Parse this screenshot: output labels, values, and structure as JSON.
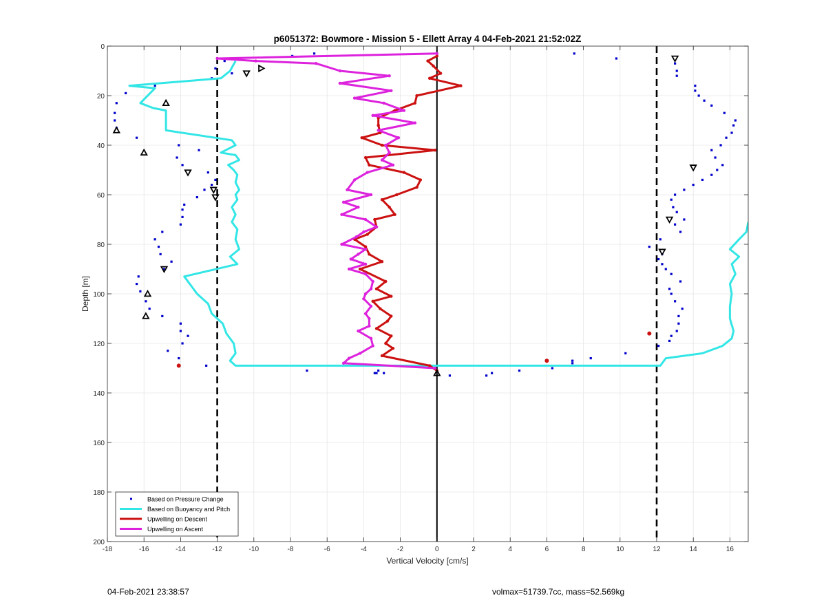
{
  "chart_data": {
    "type": "line",
    "title": "p6051372: Bowmore - Mission 5 - Ellett Array 4 04-Feb-2021 21:52:02Z",
    "xlabel": "Vertical Velocity [cm/s]",
    "ylabel": "Depth [m]",
    "xlim": [
      -18,
      17
    ],
    "ylim": [
      0,
      200
    ],
    "y_reversed": true,
    "grid": true,
    "legend_position": "bottom-left",
    "xticks": [
      -18,
      -16,
      -14,
      -12,
      -10,
      -8,
      -6,
      -4,
      -2,
      0,
      2,
      4,
      6,
      8,
      10,
      12,
      14,
      16
    ],
    "yticks": [
      0,
      20,
      40,
      60,
      80,
      100,
      120,
      140,
      160,
      180,
      200
    ],
    "vlines": [
      {
        "x": -12,
        "style": "dashed",
        "color": "#000000"
      },
      {
        "x": 12,
        "style": "dashed",
        "color": "#000000"
      },
      {
        "x": 0,
        "style": "solid",
        "color": "#000000"
      }
    ],
    "series": [
      {
        "name": "Based on Pressure Change",
        "style": "points",
        "color": "#0000cc",
        "points": [
          [
            -6.7,
            3
          ],
          [
            -7.9,
            4
          ],
          [
            -11.6,
            6
          ],
          [
            -12.1,
            9
          ],
          [
            -11.2,
            11
          ],
          [
            -12.3,
            13
          ],
          [
            -15.4,
            16
          ],
          [
            -17.0,
            19
          ],
          [
            -17.5,
            23
          ],
          [
            -17.6,
            27
          ],
          [
            -17.6,
            30
          ],
          [
            -17.5,
            33
          ],
          [
            -16.4,
            37
          ],
          [
            -14.1,
            40
          ],
          [
            -13.0,
            42
          ],
          [
            -14.2,
            45
          ],
          [
            -13.9,
            48
          ],
          [
            -12.5,
            51
          ],
          [
            -12.1,
            54
          ],
          [
            -12.3,
            56
          ],
          [
            -12.7,
            58
          ],
          [
            -13.1,
            61
          ],
          [
            -13.8,
            64
          ],
          [
            -13.9,
            66
          ],
          [
            -13.9,
            69
          ],
          [
            -14.0,
            72
          ],
          [
            -15.0,
            75
          ],
          [
            -15.4,
            78
          ],
          [
            -15.2,
            81
          ],
          [
            -15.1,
            84
          ],
          [
            -14.5,
            87
          ],
          [
            -14.9,
            90
          ],
          [
            -16.3,
            93
          ],
          [
            -16.4,
            96
          ],
          [
            -16.2,
            99
          ],
          [
            -15.9,
            103
          ],
          [
            -15.7,
            106
          ],
          [
            -15.0,
            109
          ],
          [
            -14.0,
            112
          ],
          [
            -14.0,
            115
          ],
          [
            -13.6,
            117
          ],
          [
            -13.9,
            120
          ],
          [
            -14.7,
            123
          ],
          [
            -14.1,
            126
          ],
          [
            -12.6,
            129
          ],
          [
            -7.1,
            131
          ],
          [
            -3.4,
            132
          ],
          [
            -3.2,
            131
          ],
          [
            -2.9,
            132
          ],
          [
            -3.3,
            132
          ],
          [
            0.7,
            133
          ],
          [
            2.7,
            133
          ],
          [
            3.0,
            132
          ],
          [
            4.5,
            131
          ],
          [
            6.3,
            130
          ],
          [
            7.4,
            128
          ],
          [
            7.4,
            127
          ],
          [
            8.4,
            126
          ],
          [
            10.3,
            124
          ],
          [
            12.1,
            121
          ],
          [
            12.7,
            119
          ],
          [
            12.8,
            117
          ],
          [
            13.1,
            115
          ],
          [
            13.2,
            112
          ],
          [
            13.2,
            109
          ],
          [
            13.4,
            106
          ],
          [
            13.0,
            103
          ],
          [
            12.8,
            100
          ],
          [
            12.7,
            98
          ],
          [
            13.3,
            95
          ],
          [
            12.8,
            92
          ],
          [
            12.5,
            90
          ],
          [
            12.3,
            88
          ],
          [
            12.1,
            86
          ],
          [
            12.3,
            84
          ],
          [
            11.6,
            81
          ],
          [
            12.2,
            78
          ],
          [
            13.3,
            75
          ],
          [
            13.0,
            72
          ],
          [
            13.5,
            70
          ],
          [
            13.1,
            67
          ],
          [
            12.9,
            65
          ],
          [
            12.8,
            62
          ],
          [
            13.0,
            60
          ],
          [
            13.5,
            58
          ],
          [
            14.0,
            56
          ],
          [
            14.5,
            54
          ],
          [
            15.0,
            52
          ],
          [
            15.3,
            50
          ],
          [
            15.6,
            48
          ],
          [
            15.2,
            45
          ],
          [
            15.0,
            42
          ],
          [
            15.5,
            40
          ],
          [
            15.8,
            37
          ],
          [
            16.1,
            35
          ],
          [
            16.2,
            32
          ],
          [
            16.3,
            30
          ],
          [
            15.7,
            27
          ],
          [
            15.0,
            24
          ],
          [
            14.6,
            22
          ],
          [
            14.3,
            20
          ],
          [
            14.1,
            18
          ],
          [
            14.1,
            16
          ],
          [
            13.1,
            12
          ],
          [
            13.1,
            10
          ],
          [
            13.0,
            7
          ],
          [
            9.8,
            5
          ],
          [
            7.5,
            3
          ]
        ]
      },
      {
        "name": "Based on Buoyancy and Pitch",
        "style": "line",
        "color": "#33e6e6",
        "points": [
          [
            -11.0,
            6
          ],
          [
            -11.3,
            10
          ],
          [
            -11.8,
            13
          ],
          [
            -16.8,
            16
          ],
          [
            -15.4,
            17
          ],
          [
            -16.2,
            23
          ],
          [
            -15.5,
            25
          ],
          [
            -14.8,
            26
          ],
          [
            -14.8,
            34
          ],
          [
            -11.2,
            38
          ],
          [
            -11.0,
            40
          ],
          [
            -11.8,
            43
          ],
          [
            -11.0,
            44
          ],
          [
            -10.8,
            46
          ],
          [
            -11.4,
            48
          ],
          [
            -11.1,
            50
          ],
          [
            -10.9,
            52
          ],
          [
            -11.0,
            55
          ],
          [
            -10.8,
            58
          ],
          [
            -11.0,
            60
          ],
          [
            -10.9,
            62
          ],
          [
            -11.2,
            65
          ],
          [
            -11.0,
            68
          ],
          [
            -11.2,
            71
          ],
          [
            -10.9,
            74
          ],
          [
            -11.0,
            78
          ],
          [
            -10.8,
            82
          ],
          [
            -11.3,
            85
          ],
          [
            -10.9,
            88
          ],
          [
            -13.8,
            93
          ],
          [
            -13.5,
            96
          ],
          [
            -13.1,
            100
          ],
          [
            -12.5,
            104
          ],
          [
            -12.3,
            108
          ],
          [
            -11.7,
            112
          ],
          [
            -11.5,
            116
          ],
          [
            -11.1,
            120
          ],
          [
            -11.0,
            124
          ],
          [
            -11.3,
            127
          ],
          [
            -11.0,
            129
          ],
          [
            12.2,
            129
          ],
          [
            12.5,
            126
          ],
          [
            14.5,
            124
          ],
          [
            15.6,
            121
          ],
          [
            16.1,
            118
          ],
          [
            16.2,
            115
          ],
          [
            16.0,
            110
          ],
          [
            16.0,
            105
          ],
          [
            16.1,
            100
          ],
          [
            16.0,
            96
          ],
          [
            16.3,
            92
          ],
          [
            16.1,
            88
          ],
          [
            16.5,
            85
          ],
          [
            16.0,
            82
          ],
          [
            16.5,
            78
          ],
          [
            16.9,
            75
          ],
          [
            17.0,
            71
          ]
        ]
      },
      {
        "name": "Upwelling on Descent",
        "style": "line-markers",
        "color": "#cc1111",
        "points": [
          [
            0.0,
            4
          ],
          [
            -0.5,
            6
          ],
          [
            -0.2,
            8
          ],
          [
            0.2,
            11
          ],
          [
            -0.4,
            13
          ],
          [
            1.3,
            16
          ],
          [
            -1.1,
            20
          ],
          [
            -1.2,
            23
          ],
          [
            -2.3,
            26
          ],
          [
            -3.2,
            29
          ],
          [
            -3.2,
            32
          ],
          [
            -3.1,
            35
          ],
          [
            -4.1,
            37
          ],
          [
            -3.0,
            40
          ],
          [
            -0.1,
            42
          ],
          [
            -3.9,
            45
          ],
          [
            -3.7,
            48
          ],
          [
            -1.8,
            51
          ],
          [
            -0.9,
            54
          ],
          [
            -1.1,
            57
          ],
          [
            -2.2,
            60
          ],
          [
            -3.0,
            62
          ],
          [
            -2.6,
            65
          ],
          [
            -2.3,
            68
          ],
          [
            -3.4,
            70
          ],
          [
            -3.3,
            73
          ],
          [
            -3.8,
            76
          ],
          [
            -4.5,
            78
          ],
          [
            -3.9,
            81
          ],
          [
            -3.7,
            84
          ],
          [
            -3.0,
            87
          ],
          [
            -4.2,
            90
          ],
          [
            -2.8,
            95
          ],
          [
            -3.3,
            98
          ],
          [
            -2.5,
            101
          ],
          [
            -3.5,
            103
          ],
          [
            -3.1,
            106
          ],
          [
            -2.5,
            109
          ],
          [
            -2.7,
            111
          ],
          [
            -3.3,
            114
          ],
          [
            -2.5,
            117
          ],
          [
            -2.8,
            120
          ],
          [
            -2.4,
            122
          ],
          [
            -3.0,
            125
          ],
          [
            -0.4,
            129
          ],
          [
            0.0,
            131
          ]
        ]
      },
      {
        "name": "Upwelling on Ascent",
        "style": "line-markers",
        "color": "#dd22dd",
        "points": [
          [
            0.0,
            3
          ],
          [
            -12.0,
            5
          ],
          [
            -9.9,
            6
          ],
          [
            -6.6,
            7
          ],
          [
            -5.3,
            10
          ],
          [
            -2.6,
            12
          ],
          [
            -5.3,
            15
          ],
          [
            -2.5,
            18
          ],
          [
            -4.5,
            21
          ],
          [
            -2.9,
            23
          ],
          [
            -1.8,
            26
          ],
          [
            -3.5,
            28
          ],
          [
            -1.2,
            31
          ],
          [
            -3.2,
            34
          ],
          [
            -2.1,
            37
          ],
          [
            -2.8,
            40
          ],
          [
            -2.6,
            43
          ],
          [
            -3.0,
            46
          ],
          [
            -2.4,
            48
          ],
          [
            -3.8,
            51
          ],
          [
            -4.5,
            54
          ],
          [
            -4.9,
            58
          ],
          [
            -3.6,
            60
          ],
          [
            -5.1,
            63
          ],
          [
            -4.3,
            65
          ],
          [
            -5.2,
            68
          ],
          [
            -3.9,
            70
          ],
          [
            -3.3,
            73
          ],
          [
            -4.0,
            75
          ],
          [
            -4.4,
            77
          ],
          [
            -5.2,
            80
          ],
          [
            -3.9,
            82
          ],
          [
            -4.3,
            84
          ],
          [
            -4.7,
            86
          ],
          [
            -3.9,
            88
          ],
          [
            -4.8,
            90
          ],
          [
            -3.9,
            92
          ],
          [
            -3.5,
            95
          ],
          [
            -3.6,
            98
          ],
          [
            -3.9,
            100
          ],
          [
            -4.0,
            102
          ],
          [
            -3.6,
            105
          ],
          [
            -3.9,
            108
          ],
          [
            -3.7,
            110
          ],
          [
            -3.7,
            113
          ],
          [
            -4.3,
            115
          ],
          [
            -3.6,
            118
          ],
          [
            -3.5,
            121
          ],
          [
            -4.2,
            124
          ],
          [
            -4.8,
            126
          ],
          [
            -5.1,
            128
          ],
          [
            -0.1,
            130
          ]
        ]
      },
      {
        "name": "",
        "style": "triangle-up",
        "color": "#000000",
        "points": [
          [
            -14.8,
            23
          ],
          [
            -17.5,
            34
          ],
          [
            -16.0,
            43
          ],
          [
            -15.8,
            100
          ],
          [
            -15.9,
            109
          ],
          [
            0.0,
            132
          ]
        ]
      },
      {
        "name": "",
        "style": "triangle-down",
        "color": "#000000",
        "points": [
          [
            -10.4,
            11
          ],
          [
            -13.6,
            51
          ],
          [
            -12.2,
            58
          ],
          [
            -12.1,
            61
          ],
          [
            -14.9,
            90
          ],
          [
            13.0,
            5
          ],
          [
            14.0,
            49
          ],
          [
            12.7,
            70
          ],
          [
            12.3,
            83
          ]
        ]
      },
      {
        "name": "",
        "style": "triangle-right",
        "color": "#000000",
        "points": [
          [
            -9.6,
            9
          ]
        ]
      },
      {
        "name": "",
        "style": "dot",
        "color": "#cc1111",
        "points": [
          [
            -14.1,
            129
          ],
          [
            6.0,
            127
          ],
          [
            11.6,
            116
          ]
        ]
      }
    ]
  },
  "footer": {
    "timestamp": "04-Feb-2021 23:38:57",
    "summary": "volmax=51739.7cc, mass=52.569kg"
  }
}
